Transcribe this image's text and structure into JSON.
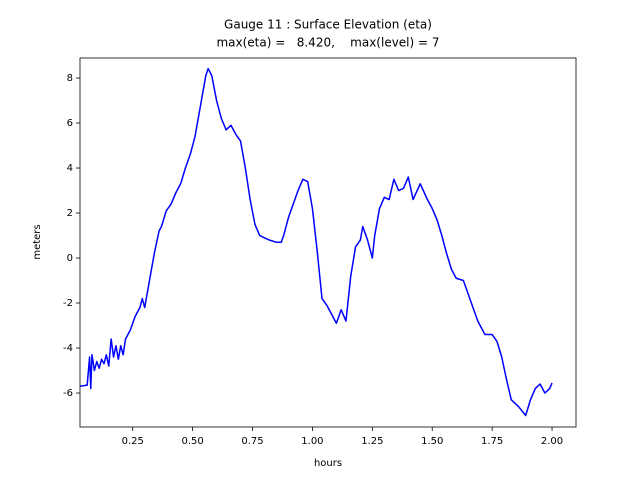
{
  "chart_data": {
    "type": "line",
    "title": "Gauge 11 : Surface Elevation (eta)",
    "subtitle": "max(eta) =   8.420,    max(level) = 7",
    "x_label": "hours",
    "y_label": "meters",
    "xlim": [
      0.03,
      2.1
    ],
    "ylim": [
      -7.51,
      8.89
    ],
    "xticks": [
      0.25,
      {
        "value": 0.5,
        "label": "0.50"
      },
      0.75,
      {
        "value": 1.0,
        "label": "1.00"
      },
      1.25,
      {
        "value": 1.5,
        "label": "1.50"
      },
      1.75,
      {
        "value": 2.0,
        "label": "2.00"
      }
    ],
    "yticks": [
      -6,
      -4,
      -2,
      0,
      2,
      4,
      6,
      8
    ],
    "grid": false,
    "series": [
      {
        "name": "eta",
        "color": "#0000ff",
        "x": [
          0.03,
          0.06,
          0.07,
          0.075,
          0.08,
          0.09,
          0.1,
          0.11,
          0.12,
          0.13,
          0.14,
          0.15,
          0.16,
          0.17,
          0.18,
          0.19,
          0.2,
          0.21,
          0.22,
          0.24,
          0.26,
          0.28,
          0.29,
          0.3,
          0.32,
          0.34,
          0.36,
          0.37,
          0.39,
          0.41,
          0.43,
          0.45,
          0.47,
          0.49,
          0.51,
          0.53,
          0.555,
          0.565,
          0.58,
          0.6,
          0.62,
          0.64,
          0.66,
          0.68,
          0.7,
          0.72,
          0.74,
          0.76,
          0.78,
          0.8,
          0.82,
          0.85,
          0.87,
          0.88,
          0.9,
          0.92,
          0.94,
          0.96,
          0.98,
          1.0,
          1.02,
          1.04,
          1.06,
          1.08,
          1.1,
          1.12,
          1.14,
          1.16,
          1.18,
          1.2,
          1.21,
          1.23,
          1.25,
          1.26,
          1.28,
          1.3,
          1.32,
          1.34,
          1.36,
          1.38,
          1.4,
          1.42,
          1.45,
          1.48,
          1.5,
          1.52,
          1.54,
          1.56,
          1.58,
          1.6,
          1.63,
          1.66,
          1.69,
          1.72,
          1.75,
          1.77,
          1.79,
          1.81,
          1.83,
          1.86,
          1.89,
          1.91,
          1.93,
          1.95,
          1.97,
          1.99,
          2.0
        ],
        "values": [
          -5.7,
          -5.65,
          -4.4,
          -5.8,
          -4.3,
          -5.0,
          -4.6,
          -4.9,
          -4.5,
          -4.7,
          -4.3,
          -4.8,
          -3.6,
          -4.4,
          -3.9,
          -4.5,
          -3.9,
          -4.3,
          -3.6,
          -3.2,
          -2.6,
          -2.2,
          -1.8,
          -2.2,
          -1.0,
          0.2,
          1.2,
          1.4,
          2.1,
          2.4,
          2.9,
          3.3,
          4.0,
          4.6,
          5.4,
          6.6,
          8.1,
          8.42,
          8.1,
          7.0,
          6.2,
          5.7,
          5.9,
          5.5,
          5.2,
          4.0,
          2.6,
          1.5,
          1.0,
          0.9,
          0.8,
          0.7,
          0.7,
          1.0,
          1.8,
          2.4,
          3.0,
          3.5,
          3.4,
          2.2,
          0.3,
          -1.8,
          -2.1,
          -2.5,
          -2.9,
          -2.3,
          -2.8,
          -0.8,
          0.5,
          0.8,
          1.4,
          0.8,
          0.0,
          1.0,
          2.2,
          2.7,
          2.6,
          3.5,
          3.0,
          3.1,
          3.6,
          2.6,
          3.3,
          2.6,
          2.2,
          1.7,
          1.0,
          0.2,
          -0.5,
          -0.9,
          -1.0,
          -1.9,
          -2.8,
          -3.4,
          -3.4,
          -3.7,
          -4.4,
          -5.4,
          -6.3,
          -6.6,
          -7.0,
          -6.3,
          -5.8,
          -5.6,
          -6.0,
          -5.8,
          -5.55
        ]
      }
    ]
  }
}
